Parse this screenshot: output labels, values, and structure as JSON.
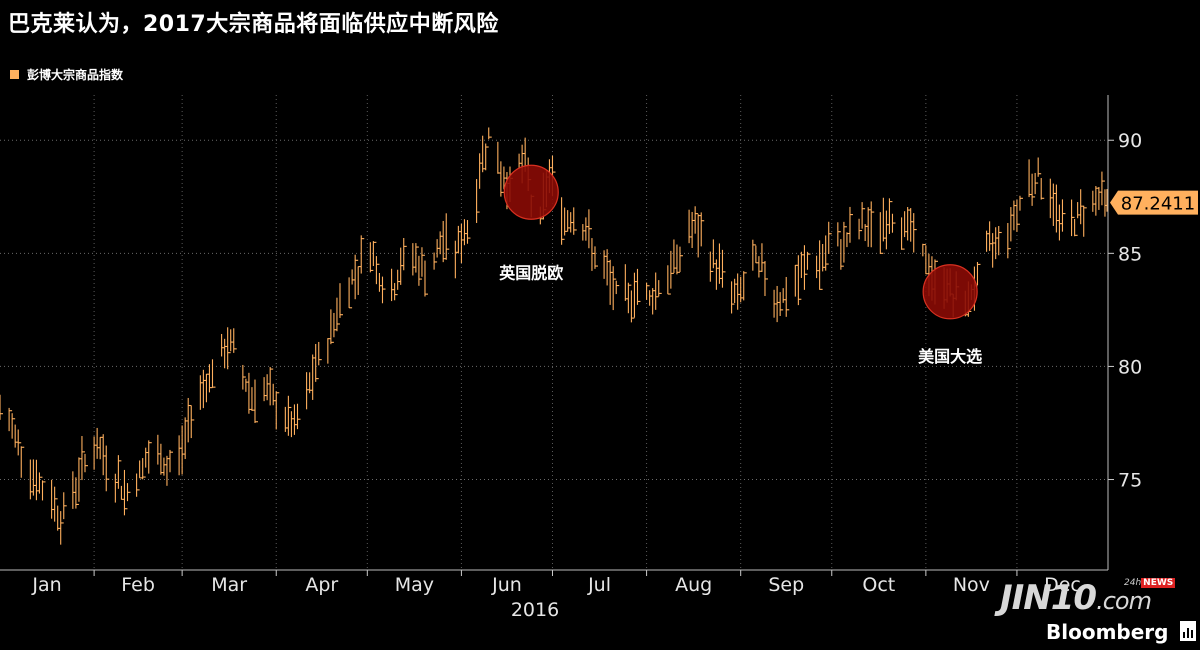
{
  "title": "巴克莱认为，2017大宗商品将面临供应中断风险",
  "legend": {
    "label": "彭博大宗商品指数",
    "color": "#ffb05e"
  },
  "last_value_label": "87.2411",
  "brand": {
    "jin10": "JIN10",
    "jin10_suffix": ".com",
    "news_prefix": "24h",
    "news": "NEWS",
    "bloomberg": "Bloomberg"
  },
  "chart_data": {
    "type": "line",
    "title": "巴克莱认为，2017大宗商品将面临供应中断风险",
    "xlabel": "2016",
    "ylabel": "",
    "x_range": [
      "2016-01-01",
      "2016-12-31"
    ],
    "ylim": [
      71,
      92
    ],
    "y_ticks": [
      75,
      80,
      85,
      90
    ],
    "x_ticks": [
      "Jan",
      "Feb",
      "Mar",
      "Apr",
      "May",
      "Jun",
      "Jul",
      "Aug",
      "Sep",
      "Oct",
      "Nov",
      "Dec"
    ],
    "year_label": "2016",
    "grid": true,
    "legend_position": "top-left",
    "series": [
      {
        "name": "彭博大宗商品指数",
        "color": "#ffb05e",
        "style": "hlc-bars",
        "points": [
          [
            "2016-01-01",
            78.0
          ],
          [
            "2016-01-04",
            77.5
          ],
          [
            "2016-01-06",
            77.0
          ],
          [
            "2016-01-08",
            76.4
          ],
          [
            "2016-01-12",
            75.2
          ],
          [
            "2016-01-15",
            74.5
          ],
          [
            "2016-01-19",
            74.0
          ],
          [
            "2016-01-21",
            73.3
          ],
          [
            "2016-01-25",
            74.4
          ],
          [
            "2016-01-28",
            75.6
          ],
          [
            "2016-02-01",
            76.5
          ],
          [
            "2016-02-04",
            76.0
          ],
          [
            "2016-02-08",
            75.2
          ],
          [
            "2016-02-11",
            74.4
          ],
          [
            "2016-02-15",
            75.0
          ],
          [
            "2016-02-18",
            75.8
          ],
          [
            "2016-02-22",
            76.0
          ],
          [
            "2016-02-25",
            75.5
          ],
          [
            "2016-03-01",
            76.3
          ],
          [
            "2016-03-04",
            78.0
          ],
          [
            "2016-03-08",
            79.2
          ],
          [
            "2016-03-11",
            79.8
          ],
          [
            "2016-03-15",
            80.6
          ],
          [
            "2016-03-17",
            81.0
          ],
          [
            "2016-03-21",
            79.6
          ],
          [
            "2016-03-24",
            78.7
          ],
          [
            "2016-03-28",
            79.0
          ],
          [
            "2016-03-31",
            78.4
          ],
          [
            "2016-04-04",
            77.8
          ],
          [
            "2016-04-07",
            77.2
          ],
          [
            "2016-04-11",
            78.6
          ],
          [
            "2016-04-14",
            80.0
          ],
          [
            "2016-04-18",
            81.0
          ],
          [
            "2016-04-21",
            82.5
          ],
          [
            "2016-04-25",
            83.6
          ],
          [
            "2016-04-28",
            84.4
          ],
          [
            "2016-05-02",
            85.3
          ],
          [
            "2016-05-05",
            84.0
          ],
          [
            "2016-05-09",
            83.2
          ],
          [
            "2016-05-12",
            84.4
          ],
          [
            "2016-05-16",
            85.0
          ],
          [
            "2016-05-19",
            84.2
          ],
          [
            "2016-05-23",
            84.6
          ],
          [
            "2016-05-26",
            85.6
          ],
          [
            "2016-05-30",
            85.1
          ],
          [
            "2016-06-02",
            85.8
          ],
          [
            "2016-06-06",
            87.5
          ],
          [
            "2016-06-08",
            89.5
          ],
          [
            "2016-06-10",
            90.2
          ],
          [
            "2016-06-14",
            88.5
          ],
          [
            "2016-06-17",
            88.0
          ],
          [
            "2016-06-20",
            89.0
          ],
          [
            "2016-06-23",
            88.6
          ],
          [
            "2016-06-24",
            87.2
          ],
          [
            "2016-06-27",
            86.5
          ],
          [
            "2016-06-30",
            88.6
          ],
          [
            "2016-07-05",
            86.4
          ],
          [
            "2016-07-08",
            86.8
          ],
          [
            "2016-07-12",
            86.0
          ],
          [
            "2016-07-15",
            84.8
          ],
          [
            "2016-07-19",
            84.0
          ],
          [
            "2016-07-22",
            83.2
          ],
          [
            "2016-07-26",
            83.0
          ],
          [
            "2016-07-29",
            83.6
          ],
          [
            "2016-08-02",
            83.0
          ],
          [
            "2016-08-05",
            83.6
          ],
          [
            "2016-08-09",
            84.2
          ],
          [
            "2016-08-12",
            85.0
          ],
          [
            "2016-08-16",
            86.2
          ],
          [
            "2016-08-19",
            85.6
          ],
          [
            "2016-08-23",
            84.6
          ],
          [
            "2016-08-26",
            84.2
          ],
          [
            "2016-08-30",
            83.0
          ],
          [
            "2016-09-02",
            83.6
          ],
          [
            "2016-09-06",
            84.6
          ],
          [
            "2016-09-09",
            84.0
          ],
          [
            "2016-09-13",
            83.0
          ],
          [
            "2016-09-16",
            83.0
          ],
          [
            "2016-09-20",
            83.8
          ],
          [
            "2016-09-23",
            84.6
          ],
          [
            "2016-09-27",
            84.5
          ],
          [
            "2016-09-30",
            85.2
          ],
          [
            "2016-10-04",
            85.4
          ],
          [
            "2016-10-07",
            85.8
          ],
          [
            "2016-10-11",
            86.2
          ],
          [
            "2016-10-14",
            86.0
          ],
          [
            "2016-10-18",
            86.4
          ],
          [
            "2016-10-21",
            86.6
          ],
          [
            "2016-10-25",
            86.3
          ],
          [
            "2016-10-28",
            85.8
          ],
          [
            "2016-11-01",
            84.6
          ],
          [
            "2016-11-04",
            83.6
          ],
          [
            "2016-11-08",
            83.8
          ],
          [
            "2016-11-10",
            83.0
          ],
          [
            "2016-11-14",
            82.8
          ],
          [
            "2016-11-17",
            83.6
          ],
          [
            "2016-11-21",
            85.0
          ],
          [
            "2016-11-24",
            85.6
          ],
          [
            "2016-11-28",
            86.0
          ],
          [
            "2016-12-01",
            87.0
          ],
          [
            "2016-12-05",
            88.2
          ],
          [
            "2016-12-08",
            88.4
          ],
          [
            "2016-12-12",
            87.5
          ],
          [
            "2016-12-15",
            86.6
          ],
          [
            "2016-12-19",
            86.3
          ],
          [
            "2016-12-22",
            86.8
          ],
          [
            "2016-12-26",
            87.4
          ],
          [
            "2016-12-28",
            87.6
          ],
          [
            "2016-12-31",
            87.2411
          ]
        ]
      }
    ],
    "annotations": [
      {
        "label": "英国脱欧",
        "date": "2016-06-24",
        "value": 87.7
      },
      {
        "label": "美国大选",
        "date": "2016-11-09",
        "value": 83.3
      }
    ]
  }
}
